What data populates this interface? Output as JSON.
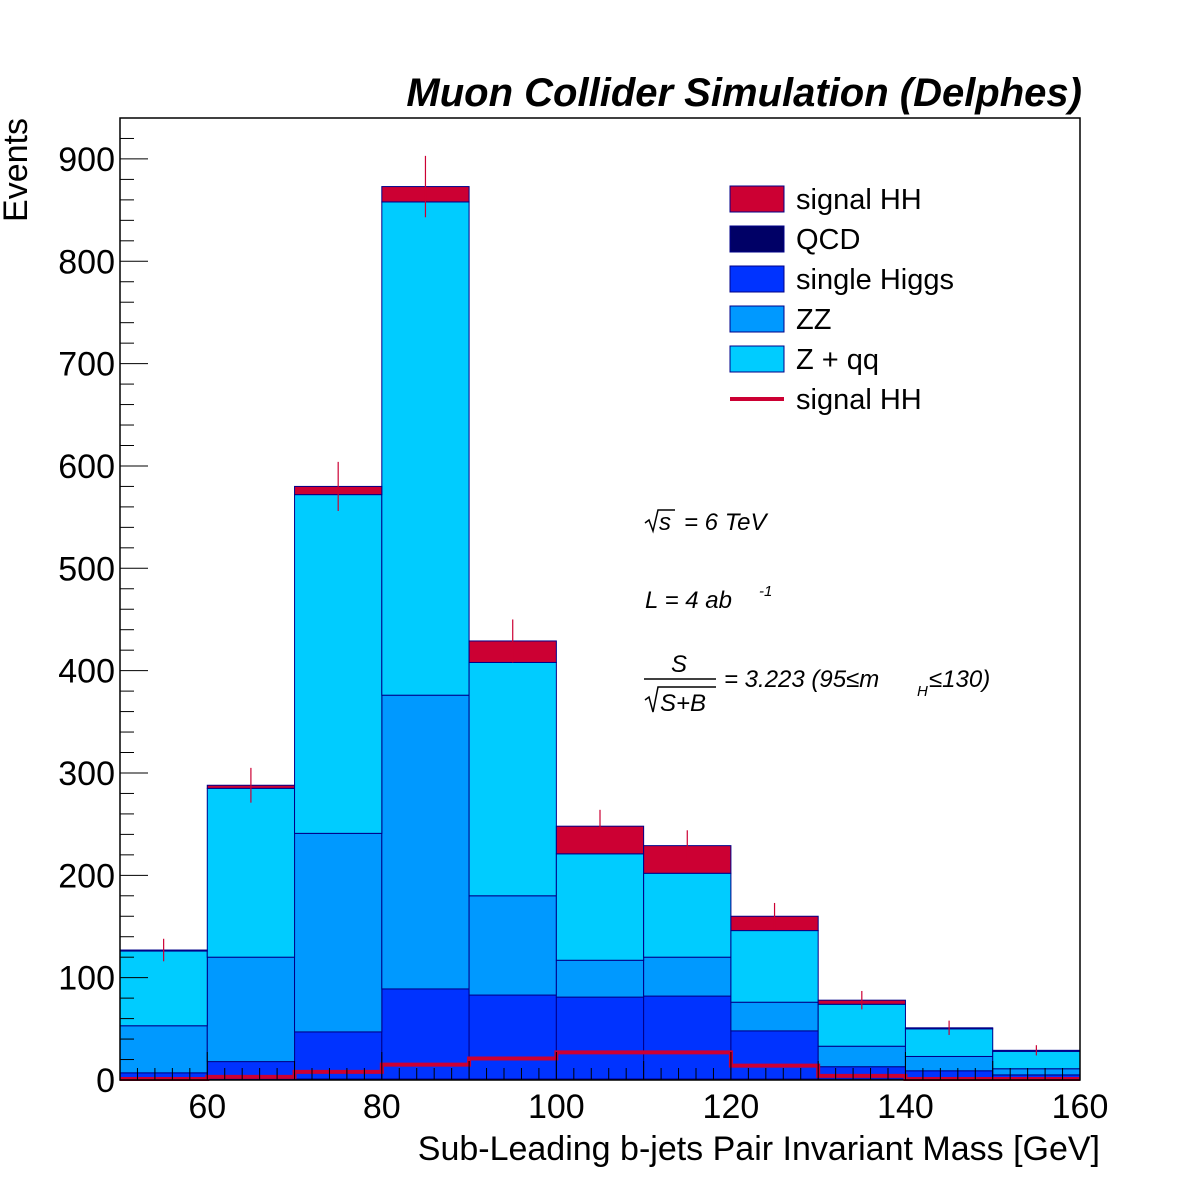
{
  "chart_data": {
    "type": "bar",
    "stacked": true,
    "title": "Muon Collider Simulation (Delphes)",
    "xlabel": "Sub-Leading b-jets Pair Invariant Mass [GeV]",
    "ylabel": "Events",
    "xlim": [
      50,
      160
    ],
    "ylim": [
      0,
      940
    ],
    "x_ticks": [
      60,
      80,
      100,
      120,
      140,
      160
    ],
    "y_ticks": [
      0,
      100,
      200,
      300,
      400,
      500,
      600,
      700,
      800,
      900
    ],
    "bin_edges": [
      50,
      60,
      70,
      80,
      90,
      100,
      110,
      120,
      130,
      140,
      150,
      160
    ],
    "series": [
      {
        "name": "QCD",
        "color": "#000066",
        "values": [
          1,
          1,
          1,
          1,
          1,
          1,
          1,
          1,
          1,
          1,
          1
        ]
      },
      {
        "name": "single Higgs",
        "color": "#0033ff",
        "values": [
          6,
          17,
          46,
          88,
          82,
          80,
          81,
          47,
          12,
          8,
          4
        ]
      },
      {
        "name": "ZZ",
        "color": "#0099ff",
        "values": [
          46,
          102,
          194,
          287,
          97,
          36,
          38,
          28,
          20,
          14,
          6
        ]
      },
      {
        "name": "Z + qq",
        "color": "#00ccff",
        "values": [
          73,
          165,
          331,
          482,
          228,
          104,
          82,
          70,
          41,
          27,
          17
        ]
      },
      {
        "name": "signal HH",
        "color": "#cc0033",
        "values": [
          1,
          3,
          8,
          15,
          21,
          27,
          27,
          14,
          4,
          1,
          1
        ]
      }
    ],
    "signal_overlay": {
      "name": "signal HH",
      "color": "#cc0033",
      "values": [
        1,
        3,
        8,
        15,
        21,
        27,
        27,
        14,
        4,
        1,
        1
      ]
    },
    "error_bars": {
      "center": [
        127,
        288,
        580,
        873,
        429,
        248,
        229,
        160,
        78,
        51,
        29
      ],
      "err": [
        11,
        17,
        24,
        30,
        21,
        16,
        15,
        13,
        9,
        7,
        5
      ]
    },
    "legend": {
      "placement": "top-right",
      "entries": [
        {
          "label": "signal HH",
          "kind": "box",
          "color": "#cc0033"
        },
        {
          "label": "QCD",
          "kind": "box",
          "color": "#000066"
        },
        {
          "label": "single Higgs",
          "kind": "box",
          "color": "#0033ff"
        },
        {
          "label": "ZZ",
          "kind": "box",
          "color": "#0099ff"
        },
        {
          "label": "Z + qq",
          "kind": "box",
          "color": "#00ccff"
        },
        {
          "label": "signal HH",
          "kind": "line",
          "color": "#cc0033"
        }
      ]
    },
    "annotations": {
      "sqrt_s_label": "s",
      "energy": "=  6 TeV",
      "lumi_base": "L  =  4 ab",
      "lumi_exp": "-1",
      "frac_num": "S",
      "frac_den": "S+B",
      "significance": "=  3.223  (95≤m",
      "mass_sub": "H",
      "mass_tail": "≤130)"
    },
    "grid": false
  }
}
